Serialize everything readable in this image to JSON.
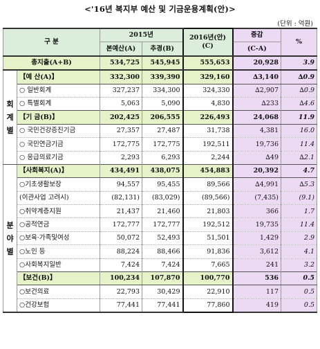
{
  "title": "<'16년 복지부 예산 및 기금운용계획(안)>",
  "unit": "(단위 : 억원)",
  "headers": {
    "category": "구  분",
    "year2015": "2015년",
    "budget": "본예산(A)",
    "supplementary": "추경(B)",
    "year2016_line1": "2016년(안)",
    "year2016_line2": "(C)",
    "change_line1": "증감",
    "change_line2": "(C-A)",
    "percent": "%"
  },
  "groups": {
    "accounting": "회계별",
    "sector": "분야별"
  },
  "rows": [
    {
      "label": "총지출(A+B)",
      "a": "534,725",
      "b": "545,945",
      "c": "555,653",
      "d": "20,928",
      "p": "3.9"
    },
    {
      "label": "【예 산(A)】",
      "a": "332,300",
      "b": "339,390",
      "c": "329,160",
      "d": "∆3,140",
      "p": "∆0.9"
    },
    {
      "label": "○ 일반회계",
      "a": "327,237",
      "b": "334,300",
      "c": "324,330",
      "d": "∆2,907",
      "p": "∆0.9"
    },
    {
      "label": "○ 특별회계",
      "a": "5,063",
      "b": "5,090",
      "c": "4,830",
      "d": "∆233",
      "p": "∆4.6"
    },
    {
      "label": "【기 금(B)】",
      "a": "202,425",
      "b": "206,555",
      "c": "226,493",
      "d": "24,068",
      "p": "11.9"
    },
    {
      "label": "○ 국민건강증진기금",
      "a": "27,357",
      "b": "27,487",
      "c": "31,738",
      "d": "4,381",
      "p": "16.0"
    },
    {
      "label": "○ 국민연금기금",
      "a": "172,775",
      "b": "172,775",
      "c": "192,511",
      "d": "19,736",
      "p": "11.4"
    },
    {
      "label": "○ 응급의료기금",
      "a": "2,293",
      "b": "6,293",
      "c": "2,244",
      "d": "∆49",
      "p": "∆2.1"
    },
    {
      "label": "【사회복지(A)】",
      "a": "434,491",
      "b": "438,075",
      "c": "454,883",
      "d": "20,392",
      "p": "4.7"
    },
    {
      "label": "○기초생활보장",
      "a": "94,557",
      "b": "95,455",
      "c": "89,566",
      "d": "∆4,991",
      "p": "∆5.3"
    },
    {
      "label": "(이관사업 고려시)",
      "a": "(82,131)",
      "b": "(83,029)",
      "c": "(89,566)",
      "d": "(7,435)",
      "p": "(9.1)"
    },
    {
      "label": "○취약계층지원",
      "a": "21,437",
      "b": "21,460",
      "c": "21,803",
      "d": "366",
      "p": "1.7"
    },
    {
      "label": "○공적연금",
      "a": "172,777",
      "b": "172,777",
      "c": "192,512",
      "d": "19,735",
      "p": "11.4"
    },
    {
      "label": "○보육·가족및여성",
      "a": "50,072",
      "b": "52,493",
      "c": "51,501",
      "d": "1,429",
      "p": "2.9"
    },
    {
      "label": "○노인 등",
      "a": "88,224",
      "b": "88,466",
      "c": "91,836",
      "d": "3,612",
      "p": "4.1"
    },
    {
      "label": "○사회복지일반",
      "a": "7,424",
      "b": "7,424",
      "c": "7,665",
      "d": "241",
      "p": "3.2"
    },
    {
      "label": "【보건(B)】",
      "a": "100,234",
      "b": "107,870",
      "c": "100,770",
      "d": "536",
      "p": "0.5"
    },
    {
      "label": "○보건의료",
      "a": "22,793",
      "b": "30,429",
      "c": "22,910",
      "d": "117",
      "p": "0.5"
    },
    {
      "label": "○건강보험",
      "a": "77,441",
      "b": "77,441",
      "c": "77,860",
      "d": "419",
      "p": "0.5"
    }
  ],
  "colors": {
    "header_bg": "#dbeedb",
    "highlight_row_bg": "#e6f2c8",
    "change_column_bg": "#ecdaf5"
  }
}
